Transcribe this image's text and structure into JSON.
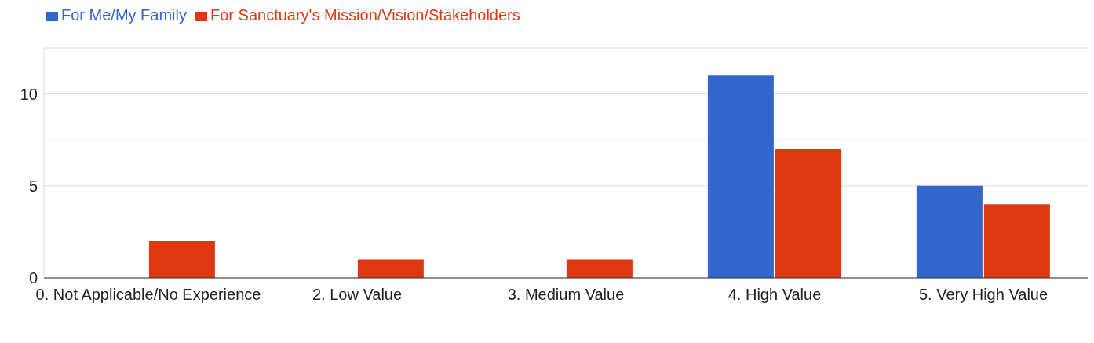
{
  "chart_data": {
    "type": "bar",
    "categories": [
      "0. Not Applicable/No Experience",
      "2. Low Value",
      "3. Medium Value",
      "4. High Value",
      "5. Very High Value"
    ],
    "series": [
      {
        "name": "For Me/My Family",
        "color": "#3366cc",
        "values": [
          0,
          0,
          0,
          11,
          5
        ]
      },
      {
        "name": "For Sanctuary's Mission/Vision/Stakeholders",
        "color": "#dc3912",
        "values": [
          2,
          1,
          1,
          7,
          4
        ]
      }
    ],
    "ylim": [
      0,
      12.5
    ],
    "yticks": [
      0,
      {
        "value": 2.5,
        "label": null
      },
      5,
      {
        "value": 7.5,
        "label": null
      },
      10,
      {
        "value": 12.5,
        "label": null
      }
    ],
    "grid": "y",
    "legend": "top left"
  }
}
